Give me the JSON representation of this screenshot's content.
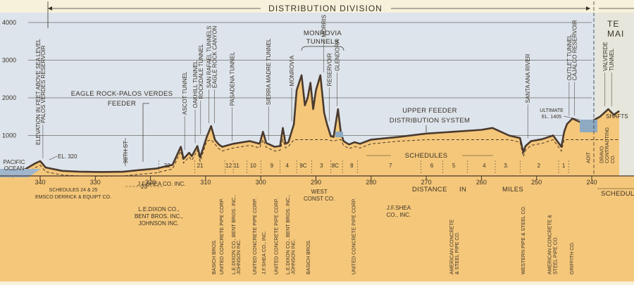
{
  "title": "DISTRIBUTION DIVISION",
  "right_header": {
    "top": "TE",
    "sub": "MAI"
  },
  "y_axis": {
    "label": "ELEVATION IN FEET ABOVE SEA LEVEL",
    "ticks": [
      {
        "text": "4000",
        "value": 4000
      },
      {
        "text": "3000",
        "value": 3000
      },
      {
        "text": "2000",
        "value": 2000
      },
      {
        "text": "1000",
        "value": 1000
      }
    ]
  },
  "x_axis": {
    "label_parts": [
      "DISTANCE",
      "IN",
      "MILES"
    ],
    "ticks": [
      {
        "text": "340",
        "value": 340
      },
      {
        "text": "330",
        "value": 330
      },
      {
        "text": "320",
        "value": 320
      },
      {
        "text": "310",
        "value": 310
      },
      {
        "text": "300",
        "value": 300
      },
      {
        "text": "290",
        "value": 290
      },
      {
        "text": "280",
        "value": 280
      },
      {
        "text": "270",
        "value": 270
      },
      {
        "text": "260",
        "value": 260
      },
      {
        "text": "250",
        "value": 250
      },
      {
        "text": "240",
        "value": 240
      }
    ]
  },
  "ground_profile": {
    "points": [
      [
        345,
        0
      ],
      [
        343,
        80
      ],
      [
        341,
        250
      ],
      [
        340,
        320
      ],
      [
        339,
        150
      ],
      [
        336,
        60
      ],
      [
        333,
        40
      ],
      [
        329,
        30
      ],
      [
        325,
        35
      ],
      [
        322,
        80
      ],
      [
        319,
        120
      ],
      [
        316,
        220
      ],
      [
        314.5,
        700
      ],
      [
        314,
        380
      ],
      [
        313,
        540
      ],
      [
        312.5,
        450
      ],
      [
        311.5,
        720
      ],
      [
        311,
        420
      ],
      [
        309.8,
        960
      ],
      [
        309,
        1250
      ],
      [
        308.3,
        880
      ],
      [
        307.6,
        760
      ],
      [
        307,
        700
      ],
      [
        305,
        780
      ],
      [
        302,
        850
      ],
      [
        300.2,
        780
      ],
      [
        299.6,
        1100
      ],
      [
        299,
        800
      ],
      [
        297.5,
        700
      ],
      [
        296.5,
        720
      ],
      [
        296,
        1200
      ],
      [
        295.5,
        780
      ],
      [
        295,
        820
      ],
      [
        294,
        1300
      ],
      [
        293.5,
        2200
      ],
      [
        292.6,
        2600
      ],
      [
        292,
        1800
      ],
      [
        291.5,
        2000
      ],
      [
        291,
        2400
      ],
      [
        290.5,
        1700
      ],
      [
        290,
        2200
      ],
      [
        289.2,
        2600
      ],
      [
        288.5,
        1600
      ],
      [
        288,
        1300
      ],
      [
        287.3,
        980
      ],
      [
        286.8,
        960
      ],
      [
        286,
        1700
      ],
      [
        285.5,
        1100
      ],
      [
        285,
        850
      ],
      [
        284,
        760
      ],
      [
        283,
        820
      ],
      [
        282,
        780
      ],
      [
        280,
        890
      ],
      [
        275,
        960
      ],
      [
        270,
        1050
      ],
      [
        265,
        1100
      ],
      [
        260,
        1150
      ],
      [
        258,
        1200
      ],
      [
        255,
        1000
      ],
      [
        253,
        930
      ],
      [
        252.4,
        550
      ],
      [
        252,
        720
      ],
      [
        251,
        850
      ],
      [
        249,
        900
      ],
      [
        247,
        1000
      ],
      [
        245.5,
        700
      ],
      [
        245,
        1100
      ],
      [
        244.5,
        1300
      ],
      [
        243.5,
        1450
      ],
      [
        242,
        1350
      ],
      [
        240,
        1380
      ],
      [
        238.5,
        1500
      ],
      [
        237,
        1700
      ],
      [
        236,
        1550
      ],
      [
        235,
        1650
      ]
    ],
    "label_el_320": "EL. 320",
    "label_ultimate": [
      "ULTIMATE",
      "EL. 1405"
    ]
  },
  "landmarks": [
    {
      "name": "PALOS VERDES RESERVOIR",
      "x": 339.5
    },
    {
      "name": "ASCOT TUNNEL",
      "x": 313.8
    },
    {
      "name": "OAKHILL TUNNEL",
      "x": 311.9
    },
    {
      "name": "ROCKDALE TUNNEL",
      "x": 310.9
    },
    {
      "name": "SAN RAFAEL TUNNELS",
      "x": 309.4
    },
    {
      "name": "EAGLE ROCK CANYON",
      "x": 308.4
    },
    {
      "name": "PASADENA TUNNEL",
      "x": 305.2
    },
    {
      "name": "SIERRA MADRE TUNNEL",
      "x": 298.6
    },
    {
      "name": "MONROVIA",
      "x": 294.4
    },
    {
      "name": "MORRIS",
      "x": 288.6
    },
    {
      "name": "RESERVOIR",
      "x": 287.6
    },
    {
      "name": "GLENDORA",
      "x": 286.2
    },
    {
      "name": "SANTA ANA RIVER",
      "x": 251.6
    },
    {
      "name": "OUTLET TUNNEL",
      "x": 244.1
    },
    {
      "name": "CAJALCO RESERVOIR",
      "x": 243.1
    },
    {
      "name": "VALVERDE",
      "x": 237.6
    },
    {
      "name": "TUNNEL",
      "x": 236.4
    }
  ],
  "feeder_labels": {
    "eagle_rock": [
      "EAGLE ROCK-PALOS VERDES",
      "FEEDER"
    ],
    "upper": [
      "UPPER FEEDER",
      "DISTRIBUTION SYSTEM"
    ],
    "monrovia_tunnels": [
      "MONROVIA",
      "TUNNELS"
    ],
    "st_98": "98TH ST",
    "pacific": [
      "PACIFIC",
      "OCEAN"
    ]
  },
  "schedules_title": "SCHEDULES",
  "schedule_numbers": [
    {
      "text": "22",
      "x": 317
    },
    {
      "text": "21",
      "x": 311
    },
    {
      "text": "12",
      "x": 305.8
    },
    {
      "text": "11",
      "x": 304.4
    },
    {
      "text": "10",
      "x": 301.4
    },
    {
      "text": "9",
      "x": 298
    },
    {
      "text": "4",
      "x": 295.2
    },
    {
      "text": "9C",
      "x": 292.3
    },
    {
      "text": "3",
      "x": 289
    },
    {
      "text": "8C",
      "x": 286.5
    },
    {
      "text": "8",
      "x": 283.5
    },
    {
      "text": "7",
      "x": 276.5
    },
    {
      "text": "6",
      "x": 269
    },
    {
      "text": "5",
      "x": 265
    },
    {
      "text": "4",
      "x": 259.5
    },
    {
      "text": "3.",
      "x": 255.5
    },
    {
      "text": "2",
      "x": 249.6
    },
    {
      "text": "1",
      "x": 245.1
    }
  ],
  "schedule_23": "23",
  "contractors_horizontal": [
    {
      "lines": [
        "SCHEDULES 24 & 25",
        "EMSCO DERRICK & EQUIPT CO."
      ],
      "x": 334
    },
    {
      "lines": [
        "J.F.SHEA CO. INC."
      ],
      "x": 318
    },
    {
      "lines": [
        "L.E.DIXON CO.,",
        "BENT BROS. INC.,",
        "JOHNSON INC."
      ],
      "x": 318.5
    },
    {
      "lines": [
        "WEST",
        "CONST CO."
      ],
      "x": 289.4
    },
    {
      "lines": [
        "J.F.SHEA",
        "CO., INC."
      ],
      "x": 275
    }
  ],
  "contractors_vertical": [
    {
      "text": "BASICH BROS.",
      "x": 308.6
    },
    {
      "text": "UNITED CONCRETE PIPE CORP.",
      "x": 307.2
    },
    {
      "text": "L.E.DIXON CO., BENT BROS. INC.,",
      "x": 305
    },
    {
      "text": "JOHNSON INC.",
      "x": 304.1
    },
    {
      "text": "UNITED CONCRETE PIPE CORP.",
      "x": 301.2
    },
    {
      "text": "J.F.SHEA CO., INC.",
      "x": 299.5
    },
    {
      "text": "UNITED CONCRETE PIPE CORP.",
      "x": 297.3
    },
    {
      "text": "L.E.DIXON CO., BENT BROS. INC.,",
      "x": 295.2
    },
    {
      "text": "JOHNSON INC.",
      "x": 294.2
    },
    {
      "text": "BASICH BROS.",
      "x": 291.5
    },
    {
      "text": "UNITED CONCRETE PIPE CORP.",
      "x": 283.2
    },
    {
      "text": "AMERICAN CONCRETE",
      "x": 265.5
    },
    {
      "text": "& STEEL PIPE CO.",
      "x": 264.5
    },
    {
      "text": "WESTERN PIPE & STEEL CO.",
      "x": 252.5
    },
    {
      "text": "AMERICAN CONCRETE &",
      "x": 247.7
    },
    {
      "text": "STEEL PIPE CO.",
      "x": 246.7
    },
    {
      "text": "GRIFFITH CO.",
      "x": 243.7
    },
    {
      "text": "ADIT",
      "x": 240.7
    },
    {
      "text": "DRAVO",
      "x": 238.3
    },
    {
      "text": "CONTRACTING",
      "x": 237.3
    },
    {
      "text": "CO.",
      "x": 236.3
    }
  ],
  "right_schedule": "SCHEDULE",
  "shafts": "SHAFTS",
  "colors": {
    "paper": "#f7f1dc",
    "sky": "#dde4ec",
    "ground": "#f5c77a",
    "ground_light": "#f8d99c",
    "profile": "#4a3a2e",
    "ink": "#3a3226",
    "water": "#9fb6cc"
  }
}
